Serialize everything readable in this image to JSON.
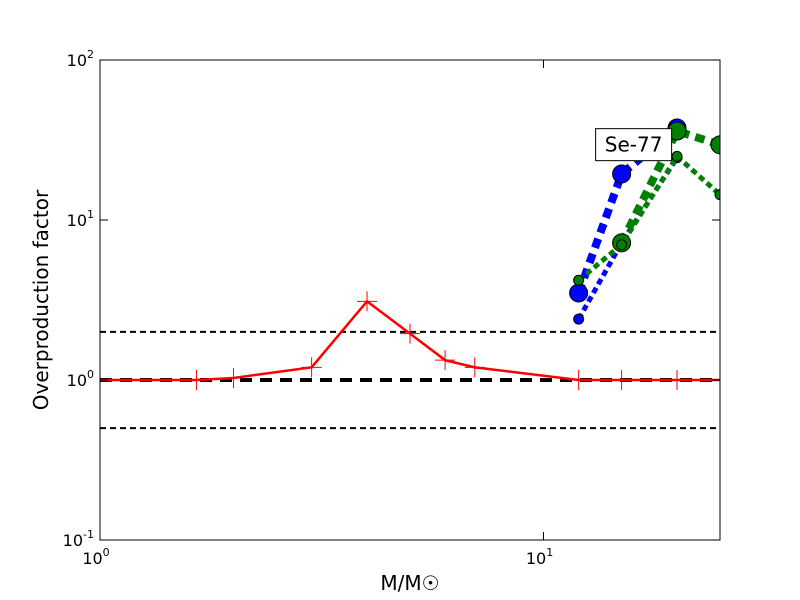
{
  "chart_data": {
    "type": "line",
    "x_label": "M/M☉",
    "y_label": "Overproduction factor",
    "log_x": true,
    "log_y": true,
    "xlim": [
      1,
      25
    ],
    "ylim": [
      0.1,
      100
    ],
    "xticks": [
      {
        "value": 1,
        "label": "10",
        "exponent": "0"
      },
      {
        "value": 10,
        "label": "10",
        "exponent": "1"
      }
    ],
    "yticks": [
      {
        "value": 0.1,
        "label": "10",
        "exponent": "-1"
      },
      {
        "value": 1,
        "label": "10",
        "exponent": "0"
      },
      {
        "value": 10,
        "label": "10",
        "exponent": "1"
      },
      {
        "value": 100,
        "label": "10",
        "exponent": "2"
      }
    ],
    "hlines": [
      {
        "value": 2,
        "color": "#000000",
        "linewidth": 2
      },
      {
        "value": 1,
        "color": "#000000",
        "linewidth": 4
      },
      {
        "value": 0.5,
        "color": "#000000",
        "linewidth": 2
      }
    ],
    "series": [
      {
        "color": "#ff0000",
        "style": "solid",
        "linewidth": 2.5,
        "marker": "plus",
        "marker_size": 10,
        "x": [
          1,
          1.65,
          2,
          3,
          4,
          5,
          6,
          7,
          12,
          15,
          20,
          25
        ],
        "values": [
          1,
          1,
          1.03,
          1.2,
          3.1,
          1.95,
          1.33,
          1.2,
          1,
          1,
          1,
          1
        ]
      },
      {
        "color": "#0000ff",
        "style": "dotted",
        "linewidth": 8,
        "marker": "circle",
        "marker_size": 9,
        "x": [
          12,
          15,
          20
        ],
        "values": [
          3.5,
          19.4,
          37.6
        ]
      },
      {
        "color": "#0000ff",
        "style": "dotted",
        "linewidth": 5,
        "marker": "circle",
        "marker_size": 5,
        "x": [
          12,
          15,
          20
        ],
        "values": [
          2.4,
          7.2,
          24.5
        ]
      },
      {
        "color": "#008000",
        "style": "dotted",
        "linewidth": 8,
        "marker": "circle",
        "marker_size": 9,
        "x": [
          15,
          20,
          25
        ],
        "values": [
          7.2,
          36,
          29.5
        ]
      },
      {
        "color": "#008000",
        "style": "dotted",
        "linewidth": 5,
        "marker": "circle",
        "marker_size": 5,
        "x": [
          12,
          15,
          20,
          25
        ],
        "values": [
          4.2,
          7,
          25,
          14.4
        ]
      }
    ],
    "annotation": {
      "text": "Se-77",
      "x": 15.8,
      "y": 30
    }
  }
}
